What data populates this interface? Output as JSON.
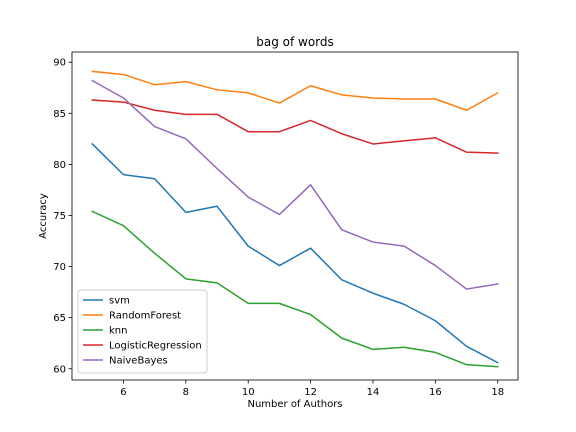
{
  "chart_data": {
    "type": "line",
    "title": "bag of words",
    "xlabel": "Number of Authors",
    "ylabel": "Accuracy",
    "x": [
      5,
      6,
      7,
      8,
      9,
      10,
      11,
      12,
      13,
      14,
      15,
      16,
      17,
      18
    ],
    "xlim": [
      4.35,
      18.65
    ],
    "ylim": [
      58.9,
      91.0
    ],
    "xticks": [
      6,
      8,
      10,
      12,
      14,
      16,
      18
    ],
    "yticks": [
      60,
      65,
      70,
      75,
      80,
      85,
      90
    ],
    "grid": false,
    "legend_position": "lower-left",
    "series": [
      {
        "name": "svm",
        "color": "#1f77b4",
        "values": [
          82.0,
          79.0,
          78.6,
          75.3,
          75.9,
          72.0,
          70.1,
          71.8,
          68.7,
          67.4,
          66.3,
          64.7,
          62.2,
          60.6
        ]
      },
      {
        "name": "RandomForest",
        "color": "#ff7f0e",
        "values": [
          89.1,
          88.8,
          87.8,
          88.1,
          87.3,
          87.0,
          86.0,
          87.7,
          86.8,
          86.5,
          86.4,
          86.4,
          85.3,
          87.0
        ]
      },
      {
        "name": "knn",
        "color": "#2ca02c",
        "values": [
          75.4,
          74.0,
          71.3,
          68.8,
          68.4,
          66.4,
          66.4,
          65.3,
          63.0,
          61.9,
          62.1,
          61.6,
          60.4,
          60.2
        ]
      },
      {
        "name": "LogisticRegression",
        "color": "#d62728",
        "values": [
          86.3,
          86.1,
          85.3,
          84.9,
          84.9,
          83.2,
          83.2,
          84.3,
          83.0,
          82.0,
          82.3,
          82.6,
          81.2,
          81.1
        ]
      },
      {
        "name": "NaiveBayes",
        "color": "#9467bd",
        "values": [
          88.2,
          86.5,
          83.7,
          82.5,
          79.6,
          76.8,
          75.1,
          78.0,
          73.6,
          72.4,
          72.0,
          70.1,
          67.8,
          68.3
        ]
      }
    ]
  }
}
